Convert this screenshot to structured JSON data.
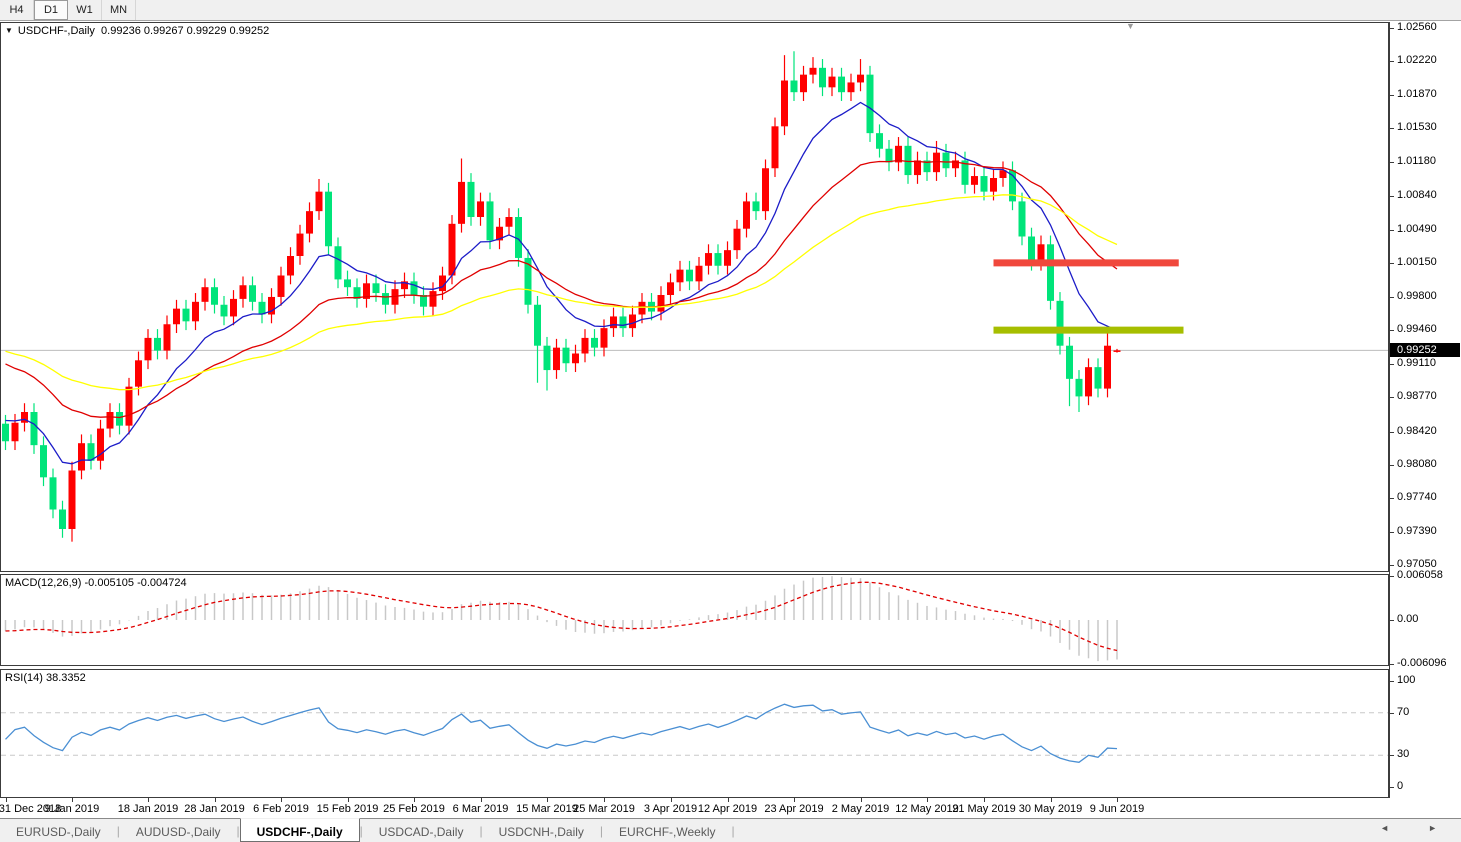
{
  "toolbar": {
    "timeframes": [
      {
        "label": "H4",
        "active": false
      },
      {
        "label": "D1",
        "active": true
      },
      {
        "label": "W1",
        "active": false
      },
      {
        "label": "MN",
        "active": false
      }
    ]
  },
  "chart": {
    "title": "USDCHF-,Daily",
    "ohlc_text": "0.99236 0.99267 0.99229 0.99252",
    "current_open": "0.99236",
    "current_high": "0.99267",
    "current_low": "0.99229",
    "current_close": "0.99252",
    "price_axis_ticks": [
      "1.02560",
      "1.02220",
      "1.01870",
      "1.01530",
      "1.01180",
      "1.00840",
      "1.00490",
      "1.00150",
      "0.99800",
      "0.99460",
      "0.99110",
      "0.98770",
      "0.98420",
      "0.98080",
      "0.97740",
      "0.97390",
      "0.97050"
    ],
    "current_price_label": "0.99252",
    "colors": {
      "bull": "#ff0000",
      "bear": "#00e47a",
      "ma_fast": "#1c1cc8",
      "ma_mid": "#e00000",
      "ma_slow": "#ffff00",
      "resistance_line": "#f0483c",
      "support_line": "#a6be00",
      "current_price_line": "#bdbdbd"
    },
    "lines": {
      "resistance": {
        "price": 1.0015,
        "k1": 104,
        "k2": 123.5,
        "thickness": 7
      },
      "support": {
        "price": 0.9946,
        "k1": 104,
        "k2": 124,
        "thickness": 7
      }
    },
    "candles": {
      "first_open": 0.985,
      "closes": [
        0.9832,
        0.9851,
        0.9862,
        0.9828,
        0.9795,
        0.9762,
        0.9742,
        0.9802,
        0.983,
        0.9812,
        0.9845,
        0.9862,
        0.9848,
        0.9888,
        0.9915,
        0.9938,
        0.9925,
        0.9952,
        0.9968,
        0.9955,
        0.9975,
        0.999,
        0.9972,
        0.996,
        0.9978,
        0.9992,
        0.9975,
        0.9962,
        0.998,
        1.0002,
        1.0022,
        1.0045,
        1.0068,
        1.0088,
        1.0032,
        0.9998,
        0.999,
        0.9978,
        0.9994,
        0.9984,
        0.9972,
        0.9988,
        0.9996,
        0.9982,
        0.997,
        0.9986,
        1.0002,
        1.0055,
        1.0098,
        1.0062,
        1.0078,
        1.0038,
        1.0052,
        1.0062,
        1.002,
        0.9972,
        0.993,
        0.9905,
        0.9928,
        0.9912,
        0.9922,
        0.9938,
        0.9928,
        0.9948,
        0.996,
        0.9948,
        0.9962,
        0.9975,
        0.9965,
        0.9982,
        0.9995,
        1.0008,
        0.9996,
        1.0012,
        1.0025,
        1.0012,
        1.0028,
        1.005,
        1.0078,
        1.0068,
        1.0112,
        1.0155,
        1.0202,
        1.019,
        1.0208,
        1.0215,
        1.0195,
        1.0206,
        1.019,
        1.02,
        1.0208,
        1.0148,
        1.0132,
        1.0118,
        1.0135,
        1.0105,
        1.012,
        1.0108,
        1.0128,
        1.0112,
        1.012,
        1.0095,
        1.0104,
        1.0088,
        1.0102,
        1.011,
        1.0078,
        1.0042,
        1.0016,
        1.0034,
        0.9976,
        0.993,
        0.9896,
        0.9878,
        0.9908,
        0.9886,
        0.993,
        0.99252
      ],
      "low_overrides": {
        "6": 0.9733,
        "7": 0.9729,
        "56": 0.9892,
        "57": 0.9884,
        "112": 0.9868,
        "113": 0.9862,
        "117": 0.99229
      },
      "high_overrides": {
        "21": 0.9999,
        "33": 1.0101,
        "48": 1.0122,
        "82": 1.0228,
        "83": 1.0232,
        "85": 1.0226,
        "90": 1.0224,
        "98": 1.014,
        "116": 0.995,
        "117": 0.99267
      },
      "open_overrides": {
        "117": 0.99236
      }
    },
    "moving_averages": [
      {
        "name": "ma-fast",
        "period": 10,
        "seed": 0.9858,
        "color_key": "ma_fast"
      },
      {
        "name": "ma-mid",
        "period": 25,
        "seed": 0.9918,
        "color_key": "ma_mid"
      },
      {
        "name": "ma-slow",
        "period": 50,
        "seed": 0.9928,
        "color_key": "ma_slow"
      }
    ],
    "dates": {
      "ticks_k": [
        0,
        7,
        15,
        22,
        29,
        36,
        43,
        50,
        57,
        63,
        70,
        76,
        83,
        90,
        97,
        103,
        110,
        117
      ],
      "labels": [
        "31 Dec 2018",
        "9 Jan 2019",
        "18 Jan 2019",
        "28 Jan 2019",
        "6 Feb 2019",
        "15 Feb 2019",
        "25 Feb 2019",
        "6 Mar 2019",
        "15 Mar 2019",
        "25 Mar 2019",
        "3 Apr 2019",
        "12 Apr 2019",
        "23 Apr 2019",
        "2 May 2019",
        "12 May 2019",
        "21 May 2019",
        "30 May 2019",
        "9 Jun 2019"
      ]
    }
  },
  "macd": {
    "label": "MACD(12,26,9)",
    "values_text": "-0.005105 -0.004724",
    "axis_ticks": [
      "0.006058",
      "0.00",
      "-0.006096"
    ],
    "hist_color": "#c8c8c8",
    "signal_color": "#e00000",
    "seeds": {
      "ema12": 0.9836,
      "ema26": 0.9852
    }
  },
  "rsi": {
    "label": "RSI(14)",
    "value_text": "38.3352",
    "axis_ticks": [
      "100",
      "70",
      "30",
      "0"
    ],
    "levels": [
      70,
      30
    ],
    "line_color": "#4a8fd3",
    "level_color": "#c8c8c8"
  },
  "tabs": {
    "items": [
      {
        "label": "EURUSD-,Daily",
        "active": false
      },
      {
        "label": "AUDUSD-,Daily",
        "active": false
      },
      {
        "label": "USDCHF-,Daily",
        "active": true
      },
      {
        "label": "USDCAD-,Daily",
        "active": false
      },
      {
        "label": "USDCNH-,Daily",
        "active": false
      },
      {
        "label": "EURCHF-,Weekly",
        "active": false
      }
    ],
    "scroll_left_icon": "◄",
    "scroll_right_icon": "►"
  }
}
